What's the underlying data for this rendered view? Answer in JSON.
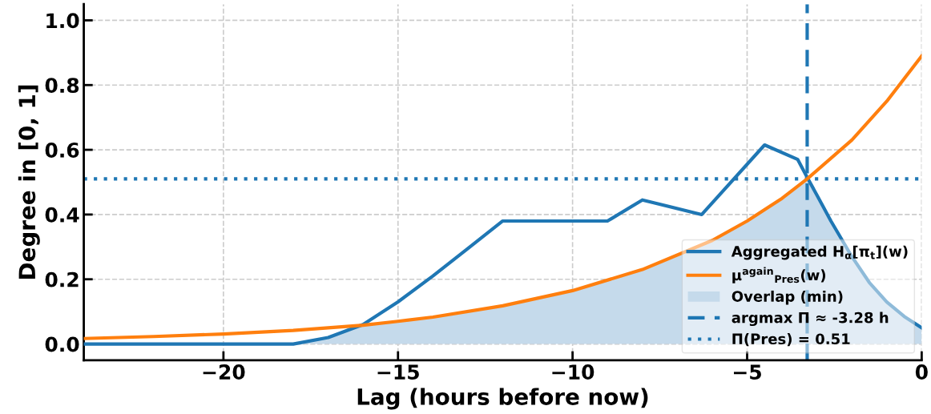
{
  "chart_data": {
    "type": "line",
    "xlabel": "Lag (hours before now)",
    "ylabel": "Degree in [0, 1]",
    "xlim": [
      -24,
      0
    ],
    "ylim": [
      -0.05,
      1.05
    ],
    "xticks": [
      {
        "value": -20,
        "label": "−20"
      },
      {
        "value": -15,
        "label": "−15"
      },
      {
        "value": -10,
        "label": "−10"
      },
      {
        "value": -5,
        "label": "−5"
      },
      {
        "value": 0,
        "label": "0"
      }
    ],
    "yticks": [
      {
        "value": 0,
        "label": "0.0"
      },
      {
        "value": 0.2,
        "label": "0.2"
      },
      {
        "value": 0.4,
        "label": "0.4"
      },
      {
        "value": 0.6,
        "label": "0.6"
      },
      {
        "value": 0.8,
        "label": "0.8"
      },
      {
        "value": 1,
        "label": "1.0"
      }
    ],
    "grid": true,
    "legend": "bottom right",
    "line_style": "solid",
    "marker": "none",
    "series": [
      {
        "name": "Aggregated H$_{α}$[π$_{t}$](w)",
        "color": "#1f77b4",
        "x": [
          -24,
          -18,
          -17,
          -16,
          -15,
          -14,
          -13,
          -12,
          -9,
          -8,
          -6.3,
          -4.5,
          -3.55,
          -3.28,
          -3.0,
          -2.6,
          -2.0,
          -1.5,
          -1.0,
          -0.5,
          0
        ],
        "values": [
          0,
          0,
          0.02,
          0.06,
          0.13,
          0.21,
          0.295,
          0.38,
          0.38,
          0.445,
          0.4,
          0.615,
          0.57,
          0.515,
          0.46,
          0.38,
          0.27,
          0.19,
          0.13,
          0.085,
          0.05
        ]
      },
      {
        "name": "μ$^{again}$$_{Pres}$(w)",
        "color": "#ff7f0e",
        "x": [
          -24,
          -22,
          -20,
          -18,
          -16,
          -15,
          -14,
          -12,
          -10,
          -8,
          -6,
          -5,
          -4,
          -3.28,
          -2,
          -1,
          0
        ],
        "values": [
          0.017,
          0.023,
          0.031,
          0.042,
          0.058,
          0.07,
          0.083,
          0.118,
          0.165,
          0.23,
          0.32,
          0.38,
          0.45,
          0.51,
          0.63,
          0.75,
          0.89
        ]
      },
      {
        "name": "Overlap (min)",
        "type": "area",
        "color": "#c5daeb",
        "x": [
          -24,
          -18,
          -17,
          -16.3,
          -16,
          -15,
          -14,
          -12,
          -10,
          -8,
          -6,
          -5,
          -4,
          -3.28,
          -3.0,
          -2.6,
          -2.0,
          -1.5,
          -1.0,
          -0.5,
          0
        ],
        "values": [
          0,
          0,
          0.02,
          0.055,
          0.058,
          0.07,
          0.083,
          0.118,
          0.165,
          0.23,
          0.32,
          0.38,
          0.45,
          0.51,
          0.46,
          0.38,
          0.27,
          0.19,
          0.13,
          0.085,
          0.05
        ]
      }
    ],
    "ref_lines": [
      {
        "axis": "x",
        "value": -3.28,
        "label": "argmax Π ≈ -3.28 h",
        "color": "#1f77b4",
        "line_style": "dashed"
      },
      {
        "axis": "y",
        "value": 0.51,
        "label": "Π(Pres) = 0.51",
        "color": "#1f77b4",
        "line_style": "dotted"
      }
    ]
  }
}
